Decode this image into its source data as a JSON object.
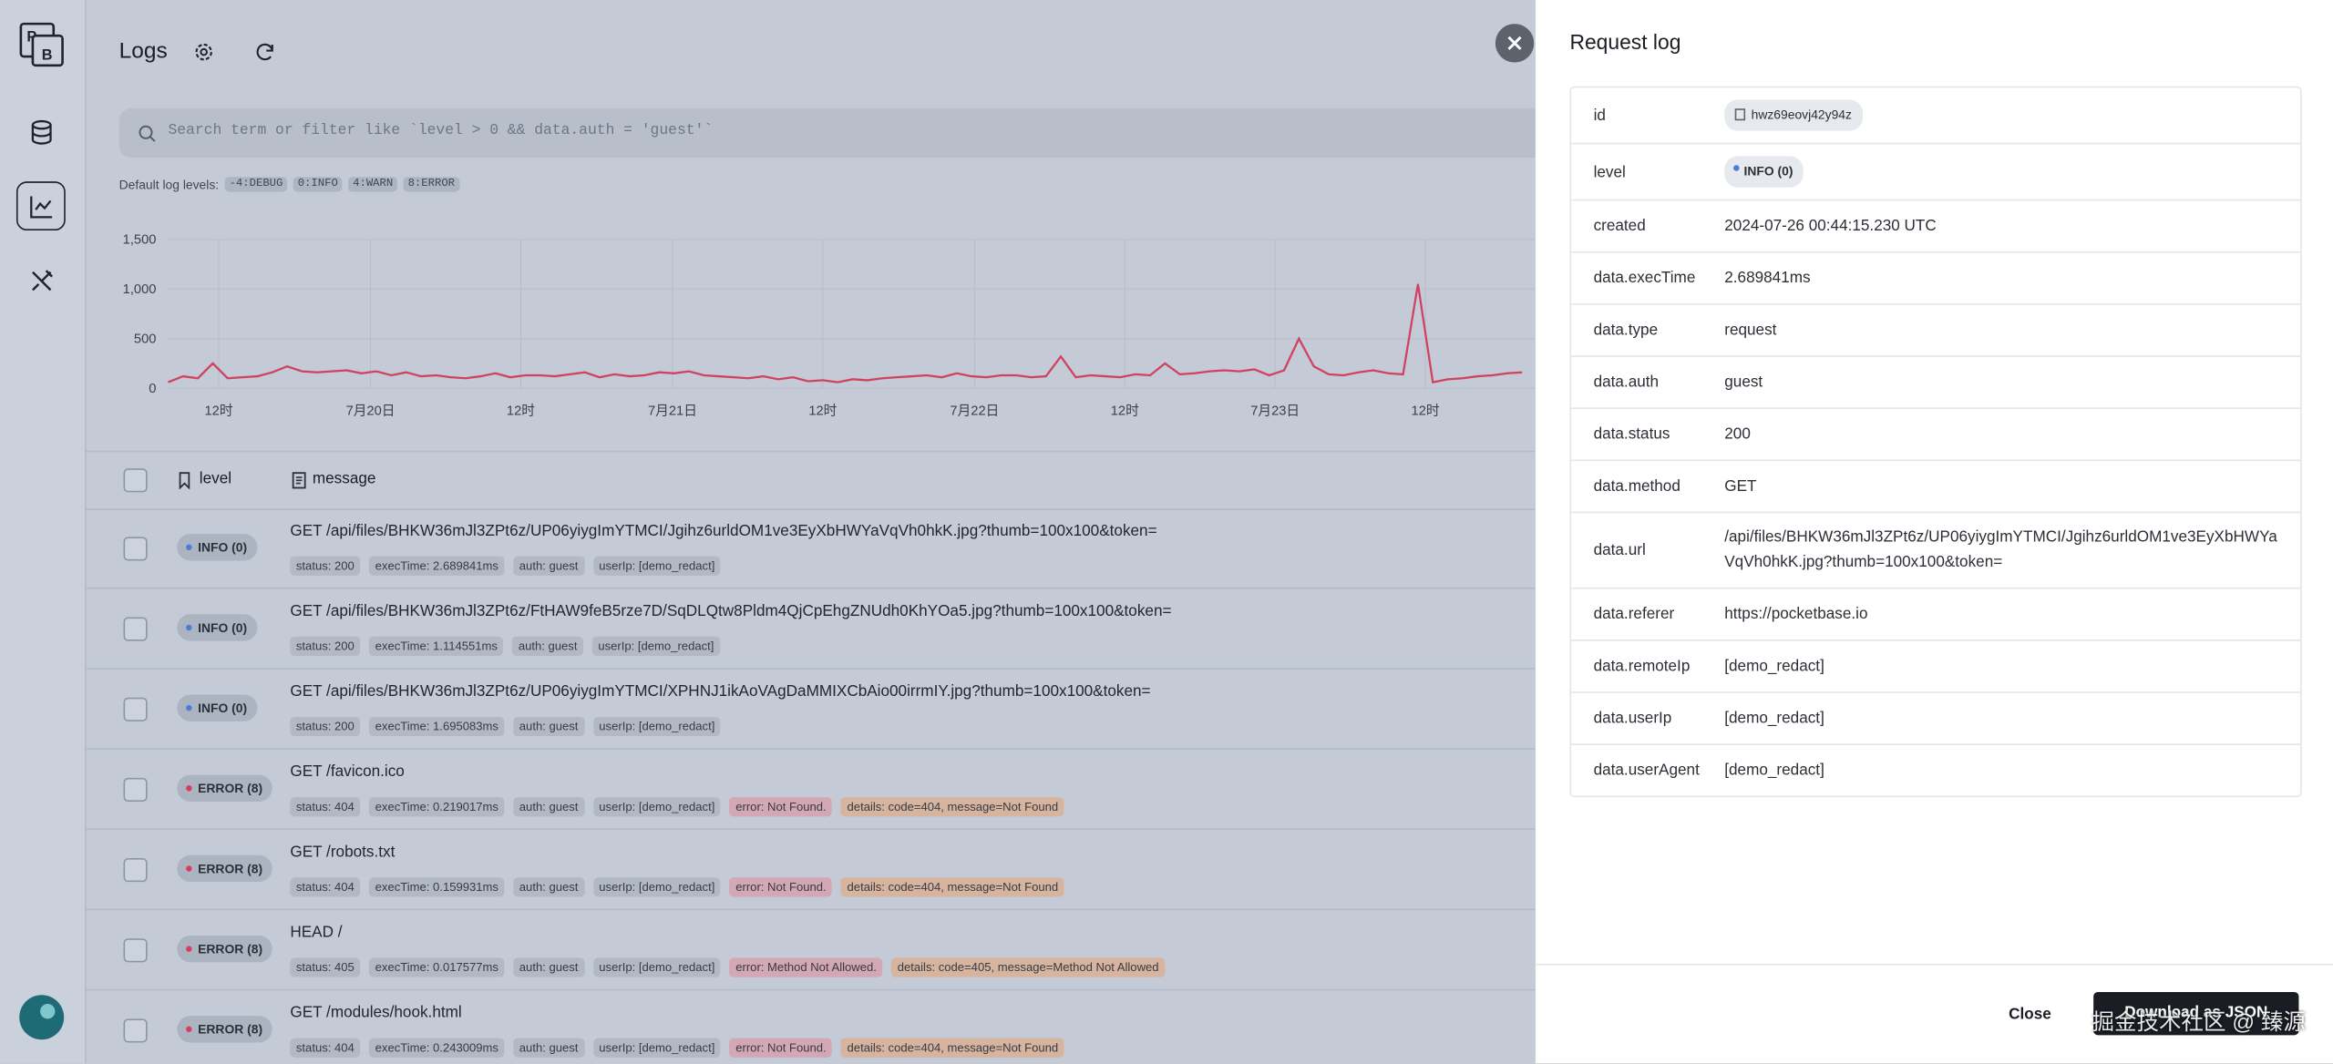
{
  "sidebar": {
    "logo": [
      "P",
      "B"
    ]
  },
  "header": {
    "title": "Logs"
  },
  "search": {
    "placeholder": "Search term or filter like `level > 0 && data.auth = 'guest'`"
  },
  "levels": {
    "label": "Default log levels:",
    "items": [
      "-4:DEBUG",
      "0:INFO",
      "4:WARN",
      "8:ERROR"
    ]
  },
  "chart": {
    "type": "line",
    "color": "#d0435f",
    "ylim": [
      0,
      1500
    ],
    "yticks": [
      0,
      500,
      {
        "value": 1000,
        "label": "1,000"
      },
      {
        "value": 1500,
        "label": "1,500"
      }
    ],
    "x_labels": [
      "12时",
      "7月20日",
      "12时",
      "7月21日",
      "12时",
      "7月22日",
      "12时",
      "7月23日",
      "12时"
    ],
    "values": [
      60,
      120,
      100,
      250,
      100,
      110,
      120,
      160,
      220,
      170,
      160,
      170,
      180,
      150,
      170,
      130,
      160,
      120,
      130,
      110,
      100,
      120,
      150,
      110,
      130,
      130,
      120,
      140,
      160,
      110,
      140,
      120,
      130,
      160,
      150,
      170,
      130,
      120,
      110,
      100,
      120,
      90,
      110,
      70,
      80,
      60,
      90,
      80,
      100,
      110,
      120,
      130,
      110,
      150,
      120,
      110,
      130,
      130,
      110,
      120,
      320,
      110,
      130,
      120,
      110,
      140,
      130,
      250,
      140,
      150,
      170,
      180,
      170,
      190,
      130,
      180,
      500,
      220,
      140,
      130,
      160,
      180,
      150,
      140,
      1050,
      60,
      90,
      100,
      120,
      130,
      150,
      160
    ]
  },
  "table": {
    "columns": [
      "level",
      "message"
    ],
    "rows": [
      {
        "level": "INFO (0)",
        "message": "GET /api/files/BHKW36mJl3ZPt6z/UP06yiygImYTMCI/Jgihz6urldOM1ve3EyXbHWYaVqVh0hkK.jpg?thumb=100x100&token=",
        "tags": [
          "status: 200",
          "execTime: 2.689841ms",
          "auth: guest",
          "userIp: [demo_redact]"
        ]
      },
      {
        "level": "INFO (0)",
        "message": "GET /api/files/BHKW36mJl3ZPt6z/FtHAW9feB5rze7D/SqDLQtw8Pldm4QjCpEhgZNUdh0KhYOa5.jpg?thumb=100x100&token=",
        "tags": [
          "status: 200",
          "execTime: 1.114551ms",
          "auth: guest",
          "userIp: [demo_redact]"
        ]
      },
      {
        "level": "INFO (0)",
        "message": "GET /api/files/BHKW36mJl3ZPt6z/UP06yiygImYTMCI/XPHNJ1ikAoVAgDaMMIXCbAio00irrmIY.jpg?thumb=100x100&token=",
        "tags": [
          "status: 200",
          "execTime: 1.695083ms",
          "auth: guest",
          "userIp: [demo_redact]"
        ]
      },
      {
        "level": "ERROR (8)",
        "message": "GET /favicon.ico",
        "tags": [
          "status: 404",
          "execTime: 0.219017ms",
          "auth: guest",
          "userIp: [demo_redact]",
          "error: Not Found.",
          "details: code=404, message=Not Found"
        ]
      },
      {
        "level": "ERROR (8)",
        "message": "GET /robots.txt",
        "tags": [
          "status: 404",
          "execTime: 0.159931ms",
          "auth: guest",
          "userIp: [demo_redact]",
          "error: Not Found.",
          "details: code=404, message=Not Found"
        ]
      },
      {
        "level": "ERROR (8)",
        "message": "HEAD /",
        "tags": [
          "status: 405",
          "execTime: 0.017577ms",
          "auth: guest",
          "userIp: [demo_redact]",
          "error: Method Not Allowed.",
          "details: code=405, message=Method Not Allowed"
        ]
      },
      {
        "level": "ERROR (8)",
        "message": "GET /modules/hook.html",
        "tags": [
          "status: 404",
          "execTime: 0.243009ms",
          "auth: guest",
          "userIp: [demo_redact]",
          "error: Not Found.",
          "details: code=404, message=Not Found"
        ]
      }
    ]
  },
  "panel": {
    "title": "Request log",
    "fields": [
      [
        "id",
        "hwz69eovj42y94z"
      ],
      [
        "level",
        "INFO (0)"
      ],
      [
        "created",
        "2024-07-26 00:44:15.230 UTC"
      ],
      [
        "data.execTime",
        "2.689841ms"
      ],
      [
        "data.type",
        "request"
      ],
      [
        "data.auth",
        "guest"
      ],
      [
        "data.status",
        "200"
      ],
      [
        "data.method",
        "GET"
      ],
      [
        "data.url",
        "/api/files/BHKW36mJl3ZPt6z/UP06yiygImYTMCI/Jgihz6urldOM1ve3EyXbHWYaVqVh0hkK.jpg?thumb=100x100&token="
      ],
      [
        "data.referer",
        "https://pocketbase.io"
      ],
      [
        "data.remoteIp",
        "[demo_redact]"
      ],
      [
        "data.userIp",
        "[demo_redact]"
      ],
      [
        "data.userAgent",
        "[demo_redact]"
      ]
    ],
    "close": "Close",
    "download": "Download as JSON"
  },
  "watermark": "掘金技术社区 @ 臻源"
}
